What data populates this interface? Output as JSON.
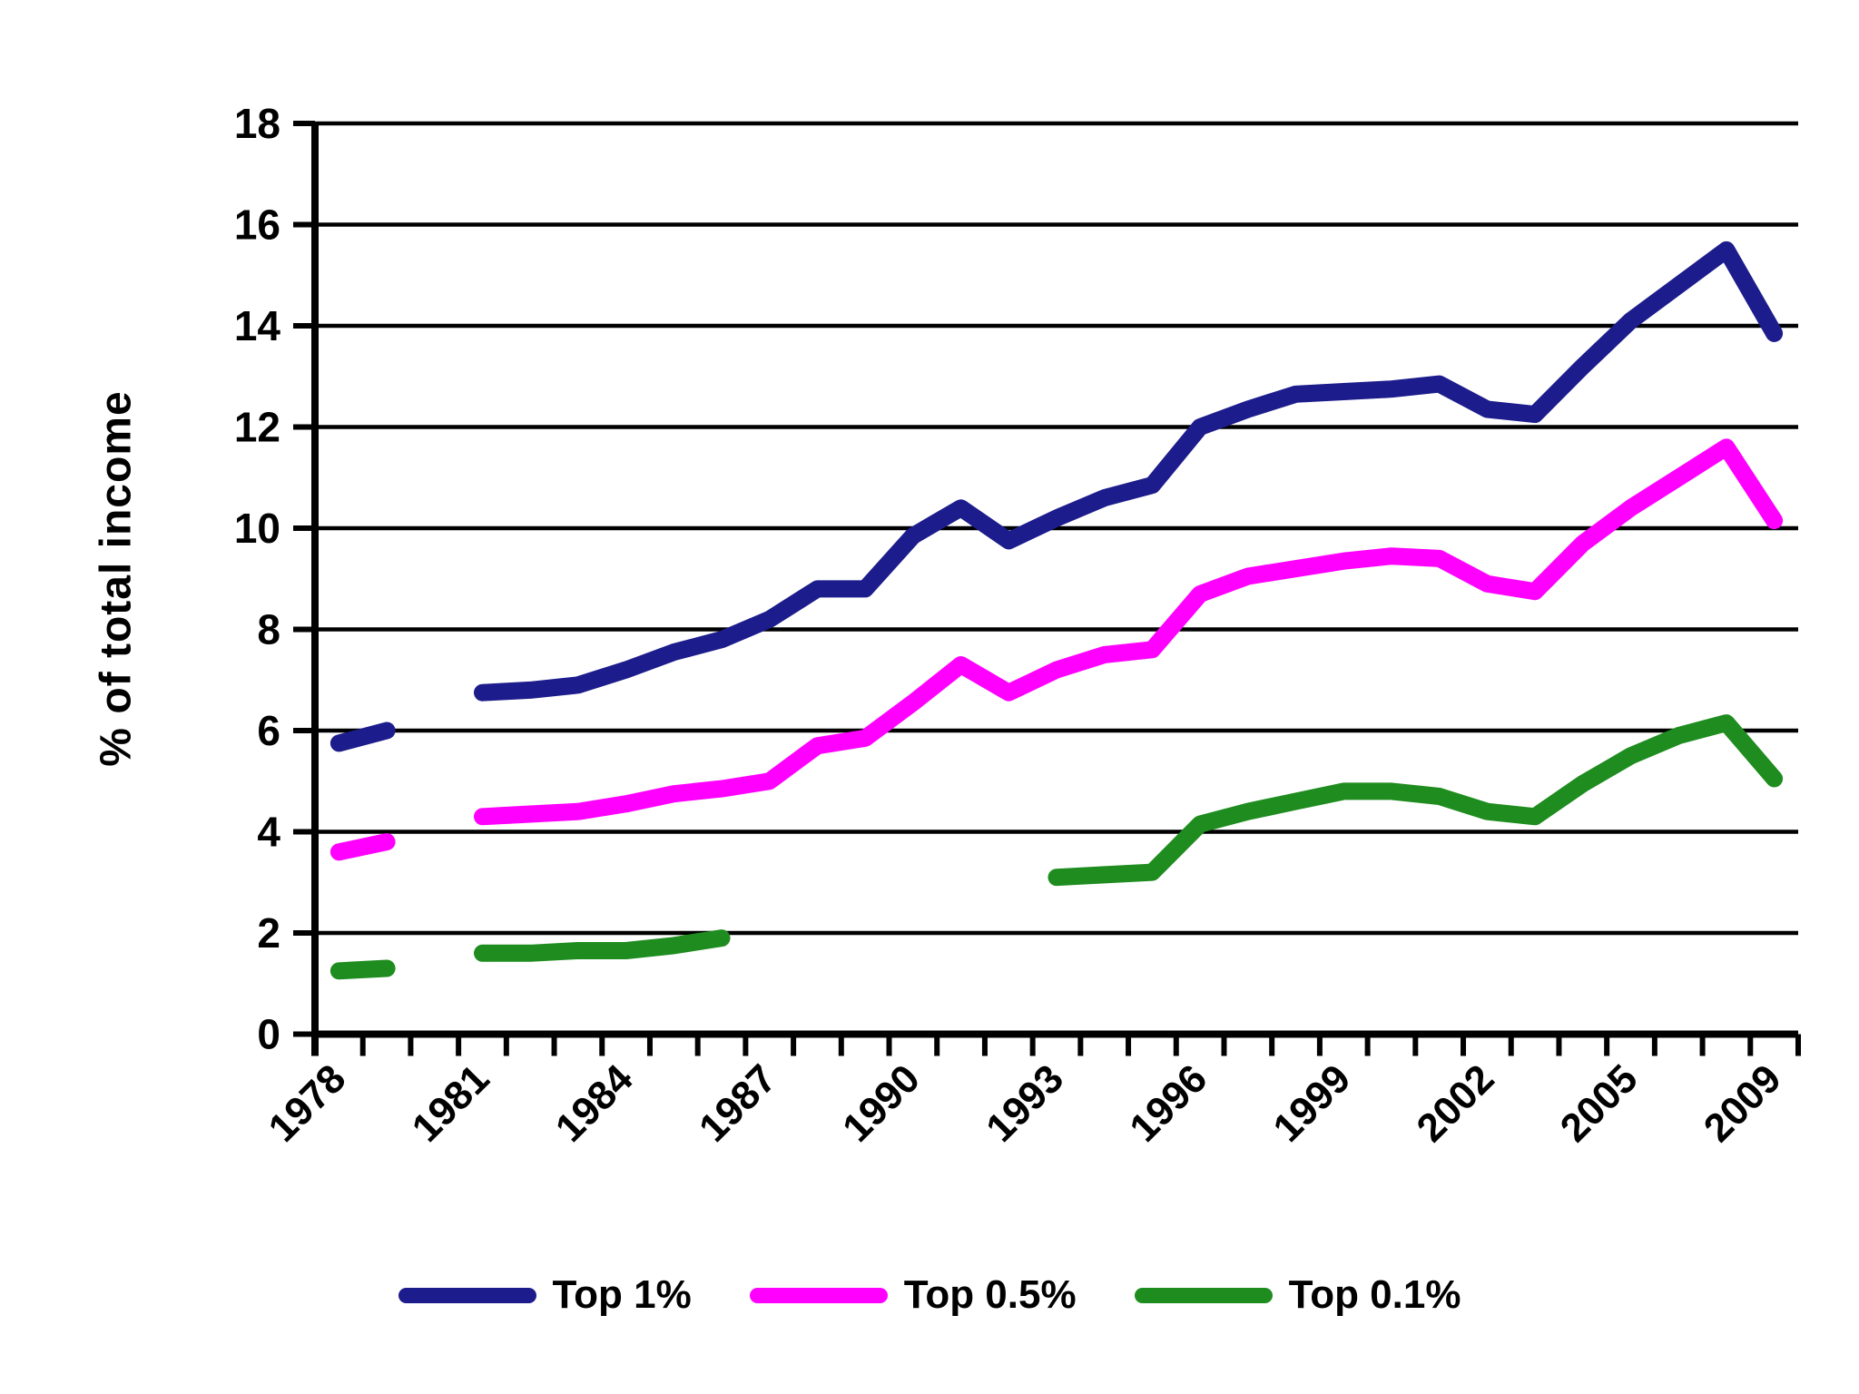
{
  "chart_data": {
    "type": "line",
    "title": "",
    "xlabel": "",
    "ylabel": "% of total income",
    "ylim": [
      0,
      18
    ],
    "ytick_step": 2,
    "grid": "horizontal-black-lines",
    "legend_position": "bottom-center",
    "axis_color": "#000000",
    "background_color": "#ffffff",
    "categories": [
      "1978",
      "1979",
      "1980",
      "1981",
      "1982",
      "1983",
      "1984",
      "1985",
      "1986",
      "1987",
      "1988",
      "1989",
      "1990",
      "1991",
      "1992",
      "1993",
      "1994",
      "1995",
      "1996",
      "1997",
      "1998",
      "1999",
      "2000",
      "2001",
      "2002",
      "2003",
      "2004",
      "2005",
      "2006",
      "2007",
      "2009"
    ],
    "x_tick_label_indices": [
      0,
      3,
      6,
      9,
      12,
      15,
      18,
      21,
      24,
      27,
      30
    ],
    "x_tick_labels": [
      "1978",
      "1981",
      "1984",
      "1987",
      "1990",
      "1993",
      "1996",
      "1999",
      "2002",
      "2005",
      "2009"
    ],
    "y_tick_labels": [
      "0",
      "2",
      "4",
      "6",
      "8",
      "10",
      "12",
      "14",
      "16",
      "18"
    ],
    "notes": "Data gaps: no observations for 1980 and 1987-1992 (Top 0.1% series); 2008 absent from axis. Lines drawn with thick rounded strokes.",
    "series": [
      {
        "name": "Top 1%",
        "color": "#1c1c8c",
        "values": [
          5.75,
          6.0,
          null,
          6.75,
          6.8,
          6.9,
          7.2,
          7.55,
          7.8,
          8.2,
          8.8,
          8.8,
          9.85,
          10.4,
          9.75,
          10.2,
          10.6,
          10.85,
          12.0,
          12.35,
          12.65,
          12.7,
          12.75,
          12.85,
          12.35,
          12.25,
          13.2,
          14.1,
          14.8,
          15.5,
          13.85
        ]
      },
      {
        "name": "Top 0.5%",
        "color": "#ff00ff",
        "values": [
          3.6,
          3.8,
          null,
          4.3,
          4.35,
          4.4,
          4.55,
          4.75,
          4.85,
          5.0,
          5.7,
          5.85,
          6.55,
          7.3,
          6.75,
          7.2,
          7.5,
          7.6,
          8.7,
          9.05,
          9.2,
          9.35,
          9.45,
          9.4,
          8.9,
          8.75,
          9.7,
          10.4,
          11.0,
          11.6,
          10.15
        ]
      },
      {
        "name": "Top 0.1%",
        "color": "#1e8c1e",
        "values": [
          1.25,
          1.3,
          null,
          1.6,
          1.6,
          1.65,
          1.65,
          1.75,
          1.9,
          null,
          null,
          null,
          null,
          null,
          null,
          3.1,
          3.15,
          3.2,
          4.15,
          4.4,
          4.6,
          4.8,
          4.8,
          4.7,
          4.4,
          4.3,
          4.95,
          5.5,
          5.9,
          6.15,
          5.05
        ]
      }
    ]
  }
}
